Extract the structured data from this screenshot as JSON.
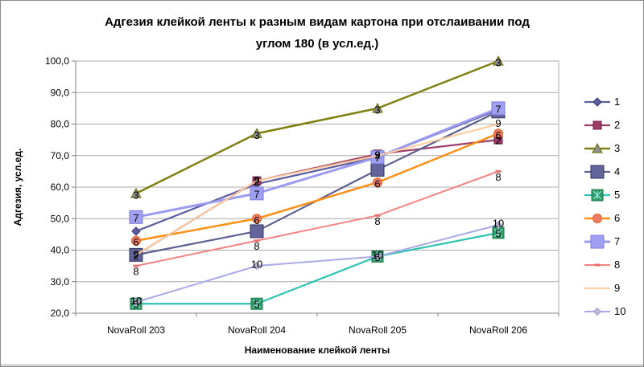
{
  "chart_data": {
    "type": "line",
    "title": "Адгезия клейкой ленты к разным видам картона при отслаивании под углом  180 (в усл.ед.)",
    "title_lines": [
      "Адгезия клейкой ленты к разным видам картона при отслаивании под",
      "углом  180 (в усл.ед.)"
    ],
    "xlabel": "Наименование клейкой ленты",
    "ylabel": "Адгезия, усл.ед.",
    "ylim": [
      20,
      100
    ],
    "y_tick_step": 10,
    "y_tick_labels": [
      "100,0",
      "90,0",
      "80,0",
      "70,0",
      "60,0",
      "50,0",
      "40,0",
      "30,0",
      "20,0"
    ],
    "grid": true,
    "legend_position": "right",
    "categories": [
      "NovaRoll 203",
      "NovaRoll 204",
      "NovaRoll 205",
      "NovaRoll 206"
    ],
    "series": [
      {
        "name": "1",
        "values": [
          46,
          61,
          69.5,
          84.5
        ],
        "line": "#5E5FA0",
        "width": 2.2,
        "marker": "diamond",
        "size": 5,
        "fill": "#5A5C9E",
        "stroke": "#35376E",
        "labels": false,
        "dy": 0
      },
      {
        "name": "2",
        "values": [
          38.5,
          62,
          70.5,
          75
        ],
        "line": "#9D3C68",
        "width": 2.2,
        "marker": "square",
        "size": 5,
        "fill": "#9D3C68",
        "stroke": "#702048",
        "labels": true,
        "dy": 1
      },
      {
        "name": "3",
        "values": [
          58,
          77,
          85,
          100
        ],
        "line": "#7F8011",
        "width": 2.5,
        "marker": "triangle",
        "size": 6,
        "fill": "#8F8F8F",
        "stroke": "#6F7000",
        "labels": true,
        "dy": 2
      },
      {
        "name": "4",
        "values": [
          38.5,
          46,
          65.5,
          84
        ],
        "line": "#5E608F",
        "width": 2.2,
        "marker": "square",
        "size": 8,
        "fill": "#62649B",
        "stroke": "#32345F",
        "labels": false,
        "dy": 0
      },
      {
        "name": "5",
        "values": [
          23,
          23,
          38,
          45.5
        ],
        "line": "#2CC3B2",
        "width": 2.2,
        "marker": "square-x",
        "size": 7,
        "fill": "#2E9C64",
        "stroke": "#1F7A4A",
        "glyph": "#8FE5D8",
        "labels": true,
        "dy": 1
      },
      {
        "name": "6",
        "values": [
          43,
          50,
          61.5,
          77
        ],
        "line": "#FF9015",
        "width": 2.5,
        "marker": "circle",
        "size": 5.5,
        "fill": "#EC7A68",
        "stroke": "#E2661F",
        "labels": true,
        "dy": 2
      },
      {
        "name": "7",
        "values": [
          50.5,
          58,
          69.5,
          85
        ],
        "line": "#9B9BF2",
        "width": 3,
        "marker": "square",
        "size": 8,
        "fill": "#9FA0F3",
        "stroke": "#7C7DD6",
        "labels": true,
        "dy": 1
      },
      {
        "name": "8",
        "values": [
          35,
          43,
          51,
          65
        ],
        "line": "#F58484",
        "width": 2,
        "marker": "dash",
        "size": 3,
        "fill": "#E96E6E",
        "stroke": "#E96E6E",
        "labels": true,
        "dy": 7
      },
      {
        "name": "9",
        "values": [
          38.5,
          62,
          70,
          80
        ],
        "line": "#FFCC9E",
        "width": 2,
        "marker": "none",
        "size": 0,
        "fill": "#FFCC9E",
        "stroke": "#FFCC9E",
        "labels": true,
        "dy": -1
      },
      {
        "name": "10",
        "values": [
          23.5,
          35,
          38,
          48
        ],
        "line": "#AAAAE8",
        "width": 2,
        "marker": "diamond",
        "size": 4.5,
        "fill": "#BDBDD6",
        "stroke": "#9C9CCE",
        "labels": true,
        "dy": -2
      }
    ]
  },
  "style": {
    "grid_color": "#ABABAB",
    "axis_color": "#808080",
    "plot_border_color": "#ABABAB",
    "label_color": "#000000"
  }
}
